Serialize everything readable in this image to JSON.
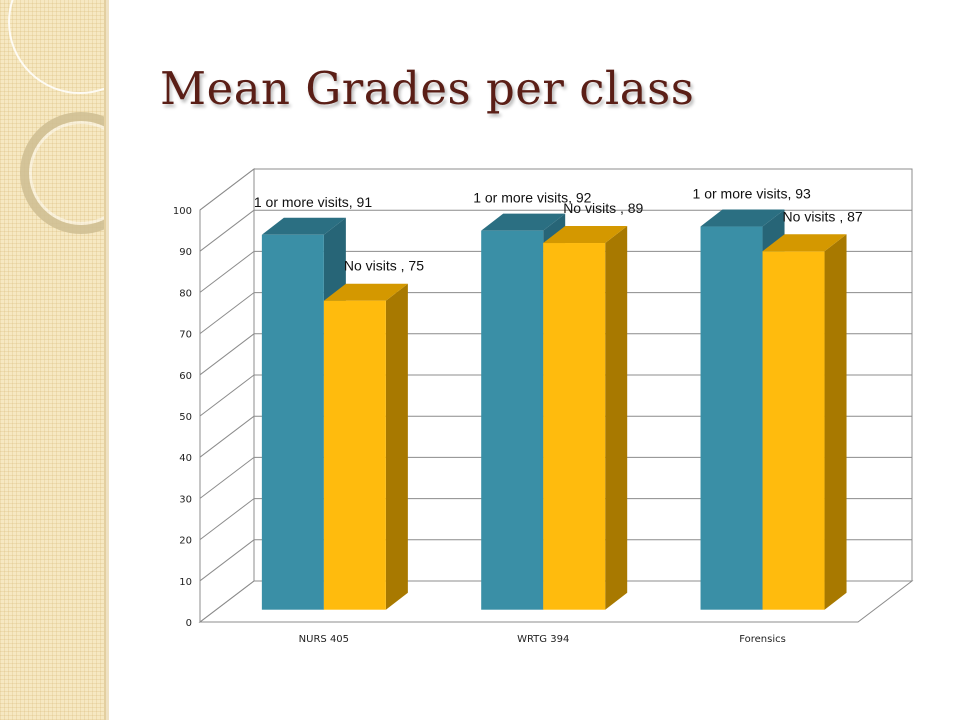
{
  "slide": {
    "title": "Mean Grades per class"
  },
  "colors": {
    "series_visits_front": "#3a8fa6",
    "series_visits_top": "#2b6f82",
    "series_visits_side": "#276577",
    "series_novisits_front": "#ffbb0d",
    "series_novisits_top": "#d49800",
    "series_novisits_side": "#a87900",
    "gridline": "#8c8c8c",
    "title": "#5a1e16",
    "sidebar": "#f6e8c2"
  },
  "chart_data": {
    "type": "bar",
    "style": "3d-clustered-column",
    "title": "",
    "xlabel": "",
    "ylabel": "",
    "categories": [
      "NURS 405",
      "WRTG 394",
      "Forensics"
    ],
    "series": [
      {
        "name": "1 or more visits",
        "values": [
          91,
          92,
          93
        ],
        "labels": [
          "1 or more visits, 91",
          "1 or more visits, 92",
          "1 or more visits, 93"
        ]
      },
      {
        "name": "No visits ",
        "values": [
          75,
          89,
          87
        ],
        "labels": [
          "No visits , 75",
          "No visits , 89",
          "No visits , 87"
        ]
      }
    ],
    "ylim": [
      0,
      100
    ],
    "yticks": [
      "0",
      "10",
      "20",
      "30",
      "40",
      "50",
      "60",
      "70",
      "80",
      "90",
      "100"
    ],
    "grid": true,
    "legend": "none"
  }
}
